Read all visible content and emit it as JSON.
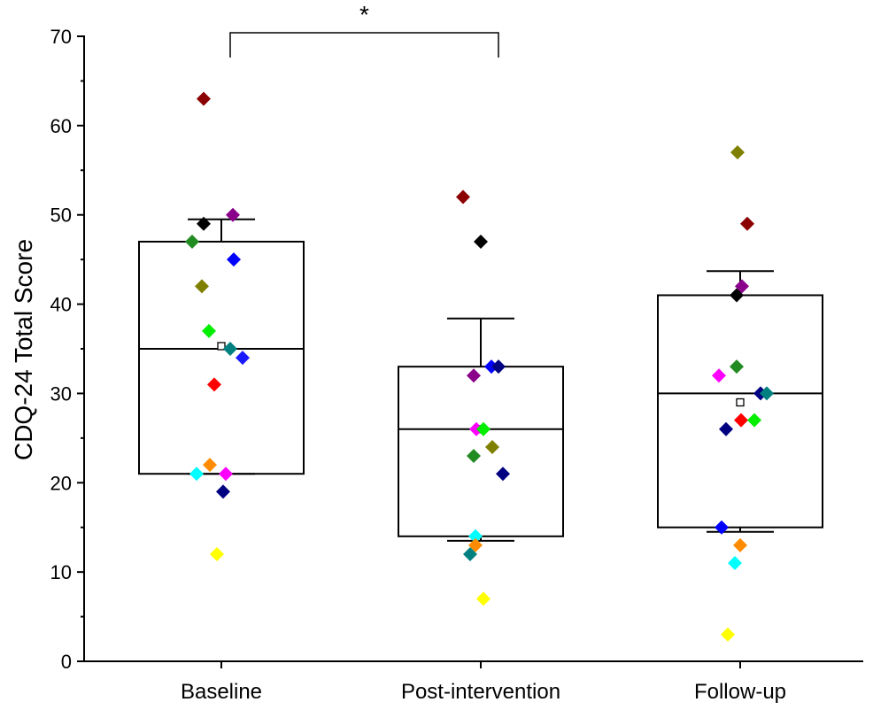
{
  "chart_data": {
    "type": "box",
    "title": "",
    "xlabel": "",
    "ylabel": "CDQ-24 Total Score",
    "ylim": [
      0,
      70
    ],
    "yticks": [
      0,
      10,
      20,
      30,
      40,
      50,
      60,
      70
    ],
    "categories": [
      "Baseline",
      "Post-intervention",
      "Follow-up"
    ],
    "grid": false,
    "boxes": [
      {
        "category": "Baseline",
        "q1": 21,
        "median": 35,
        "q3": 47,
        "mean": 35.3,
        "whisker_low": 21,
        "whisker_high": 49.5
      },
      {
        "category": "Post-intervention",
        "q1": 14,
        "median": 26,
        "q3": 33,
        "mean": 26,
        "whisker_low": 13.5,
        "whisker_high": 38.4
      },
      {
        "category": "Follow-up",
        "q1": 15,
        "median": 30,
        "q3": 41,
        "mean": 29,
        "whisker_low": 14.5,
        "whisker_high": 43.7
      }
    ],
    "points": [
      {
        "category": "Baseline",
        "color": "#8b0000",
        "value": 63,
        "jitter": -20
      },
      {
        "category": "Baseline",
        "color": "#8b008b",
        "value": 50,
        "jitter": 13
      },
      {
        "category": "Baseline",
        "color": "#000000",
        "value": 49,
        "jitter": -20
      },
      {
        "category": "Baseline",
        "color": "#228b22",
        "value": 47,
        "jitter": -33
      },
      {
        "category": "Baseline",
        "color": "#0000ff",
        "value": 45,
        "jitter": 14
      },
      {
        "category": "Baseline",
        "color": "#808000",
        "value": 42,
        "jitter": -22
      },
      {
        "category": "Baseline",
        "color": "#00ee00",
        "value": 37,
        "jitter": -14
      },
      {
        "category": "Baseline",
        "color": "#008080",
        "value": 35,
        "jitter": 10
      },
      {
        "category": "Baseline",
        "color": "#1a1aff",
        "value": 34,
        "jitter": 24
      },
      {
        "category": "Baseline",
        "color": "#ff0000",
        "value": 31,
        "jitter": -8
      },
      {
        "category": "Baseline",
        "color": "#ff8c00",
        "value": 22,
        "jitter": -13
      },
      {
        "category": "Baseline",
        "color": "#00ffff",
        "value": 21,
        "jitter": -28
      },
      {
        "category": "Baseline",
        "color": "#ff00ff",
        "value": 21,
        "jitter": 5
      },
      {
        "category": "Baseline",
        "color": "#000080",
        "value": 19,
        "jitter": 2
      },
      {
        "category": "Baseline",
        "color": "#ffff00",
        "value": 12,
        "jitter": -5
      },
      {
        "category": "Post-intervention",
        "color": "#8b0000",
        "value": 52,
        "jitter": -20
      },
      {
        "category": "Post-intervention",
        "color": "#000000",
        "value": 47,
        "jitter": 0
      },
      {
        "category": "Post-intervention",
        "color": "#0000ff",
        "value": 33,
        "jitter": 12
      },
      {
        "category": "Post-intervention",
        "color": "#000080",
        "value": 33,
        "jitter": 20
      },
      {
        "category": "Post-intervention",
        "color": "#8b008b",
        "value": 32,
        "jitter": -8
      },
      {
        "category": "Post-intervention",
        "color": "#ff00ff",
        "value": 26,
        "jitter": -5
      },
      {
        "category": "Post-intervention",
        "color": "#00ee00",
        "value": 26,
        "jitter": 3
      },
      {
        "category": "Post-intervention",
        "color": "#808000",
        "value": 24,
        "jitter": 13
      },
      {
        "category": "Post-intervention",
        "color": "#228b22",
        "value": 23,
        "jitter": -8
      },
      {
        "category": "Post-intervention",
        "color": "#000080",
        "value": 21,
        "jitter": 25
      },
      {
        "category": "Post-intervention",
        "color": "#00ffff",
        "value": 14,
        "jitter": -6
      },
      {
        "category": "Post-intervention",
        "color": "#ff8c00",
        "value": 13,
        "jitter": -6
      },
      {
        "category": "Post-intervention",
        "color": "#008080",
        "value": 12,
        "jitter": -12
      },
      {
        "category": "Post-intervention",
        "color": "#ffff00",
        "value": 7,
        "jitter": 3
      },
      {
        "category": "Follow-up",
        "color": "#808000",
        "value": 57,
        "jitter": -3
      },
      {
        "category": "Follow-up",
        "color": "#8b0000",
        "value": 49,
        "jitter": 8
      },
      {
        "category": "Follow-up",
        "color": "#8b008b",
        "value": 42,
        "jitter": 2
      },
      {
        "category": "Follow-up",
        "color": "#000000",
        "value": 41,
        "jitter": -4
      },
      {
        "category": "Follow-up",
        "color": "#228b22",
        "value": 33,
        "jitter": -4
      },
      {
        "category": "Follow-up",
        "color": "#ff00ff",
        "value": 32,
        "jitter": -24
      },
      {
        "category": "Follow-up",
        "color": "#000080",
        "value": 30,
        "jitter": 23
      },
      {
        "category": "Follow-up",
        "color": "#008080",
        "value": 30,
        "jitter": 30
      },
      {
        "category": "Follow-up",
        "color": "#ff0000",
        "value": 27,
        "jitter": 1
      },
      {
        "category": "Follow-up",
        "color": "#00ee00",
        "value": 27,
        "jitter": 16
      },
      {
        "category": "Follow-up",
        "color": "#000080",
        "value": 26,
        "jitter": -16
      },
      {
        "category": "Follow-up",
        "color": "#0000ff",
        "value": 15,
        "jitter": -21
      },
      {
        "category": "Follow-up",
        "color": "#ff8c00",
        "value": 13,
        "jitter": 0
      },
      {
        "category": "Follow-up",
        "color": "#00ffff",
        "value": 11,
        "jitter": -6
      },
      {
        "category": "Follow-up",
        "color": "#ffff00",
        "value": 3,
        "jitter": -14
      }
    ],
    "annotations": [
      {
        "text": "*",
        "from": "Baseline",
        "to": "Post-intervention",
        "type": "significance-bracket"
      }
    ]
  }
}
